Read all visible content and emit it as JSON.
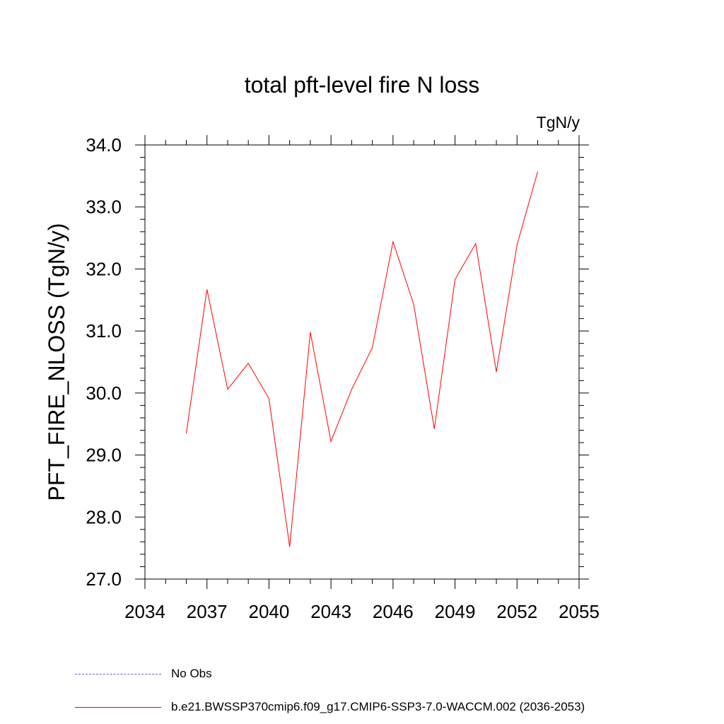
{
  "chart_data": {
    "type": "line",
    "title": "total pft-level fire N loss",
    "units_label": "TgN/y",
    "xlabel": "",
    "ylabel": "PFT_FIRE_NLOSS  (TgN/y)",
    "xlim": [
      2034,
      2055
    ],
    "ylim": [
      27.0,
      34.0
    ],
    "xticks": [
      2034,
      2037,
      2040,
      2043,
      2046,
      2049,
      2052,
      2055
    ],
    "xtick_labels": [
      "2034",
      "2037",
      "2040",
      "2043",
      "2046",
      "2049",
      "2052",
      "2055"
    ],
    "yticks": [
      27.0,
      28.0,
      29.0,
      30.0,
      31.0,
      32.0,
      33.0,
      34.0
    ],
    "ytick_labels": [
      "27.0",
      "28.0",
      "29.0",
      "30.0",
      "31.0",
      "32.0",
      "33.0",
      "34.0"
    ],
    "grid": false,
    "series": [
      {
        "name": "b.e21.BWSSP370cmip6.f09_g17.CMIP6-SSP3-7.0-WACCM.002 (2036-2053)",
        "color": "#ff0000",
        "x": [
          2036,
          2037,
          2038,
          2039,
          2040,
          2041,
          2042,
          2043,
          2044,
          2045,
          2046,
          2047,
          2048,
          2049,
          2050,
          2051,
          2052,
          2053
        ],
        "y": [
          29.35,
          31.67,
          30.06,
          30.48,
          29.91,
          27.52,
          30.98,
          29.22,
          30.06,
          30.73,
          32.44,
          31.43,
          29.42,
          31.83,
          32.41,
          30.34,
          32.39,
          33.57
        ]
      }
    ],
    "legend": [
      {
        "label": "No Obs",
        "color": "#6a5acd",
        "style": "dashed"
      },
      {
        "label": "b.e21.BWSSP370cmip6.f09_g17.CMIP6-SSP3-7.0-WACCM.002 (2036-2053)",
        "color": "#ff0000",
        "style": "solid"
      }
    ],
    "legend_position": "bottom-left"
  }
}
